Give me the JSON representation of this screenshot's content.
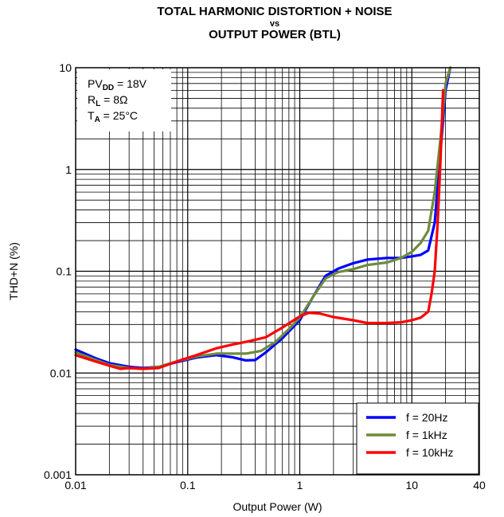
{
  "chart_data": {
    "type": "line",
    "title": [
      "TOTAL HARMONIC DISTORTION + NOISE",
      "vs",
      "OUTPUT POWER (BTL)"
    ],
    "xlabel": "Output Power (W)",
    "ylabel": "THD+N (%)",
    "xscale": "log",
    "yscale": "log",
    "xlim": [
      0.01,
      40
    ],
    "ylim": [
      0.001,
      10
    ],
    "x_tick_labels": [
      "0.01",
      "0.1",
      "1",
      "10",
      "40"
    ],
    "y_tick_labels": [
      "0.001",
      "0.01",
      "0.1",
      "1",
      "10"
    ],
    "grid": true,
    "legend_position": "bottom-right",
    "conditions": [
      {
        "main": "PV",
        "sub": "DD",
        "rest": " = 18V"
      },
      {
        "main": "R",
        "sub": "L",
        "rest": " = 8Ω"
      },
      {
        "main": "T",
        "sub": "A",
        "rest": " = 25°C"
      }
    ],
    "series": [
      {
        "name": "f = 20Hz",
        "color": "#0000ff",
        "x": [
          0.01,
          0.015,
          0.02,
          0.03,
          0.04,
          0.055,
          0.08,
          0.12,
          0.18,
          0.25,
          0.33,
          0.4,
          0.5,
          0.7,
          1.0,
          1.3,
          1.7,
          2.2,
          3.0,
          4.0,
          6.0,
          8.0,
          10.0,
          12.0,
          14.0,
          16.0,
          18.0,
          20.0,
          22.0
        ],
        "y": [
          0.017,
          0.014,
          0.0125,
          0.0115,
          0.0112,
          0.0115,
          0.0128,
          0.0142,
          0.015,
          0.0143,
          0.0133,
          0.0134,
          0.016,
          0.022,
          0.033,
          0.055,
          0.09,
          0.106,
          0.12,
          0.13,
          0.135,
          0.135,
          0.14,
          0.145,
          0.16,
          0.3,
          1.5,
          6.0,
          10.0
        ]
      },
      {
        "name": "f = 1kHz",
        "color": "#6e8b3d",
        "x": [
          0.01,
          0.015,
          0.02,
          0.03,
          0.04,
          0.055,
          0.08,
          0.12,
          0.18,
          0.25,
          0.33,
          0.45,
          0.6,
          0.8,
          1.0,
          1.3,
          1.7,
          2.2,
          3.0,
          4.0,
          6.0,
          8.0,
          10.0,
          12.0,
          14.0,
          16.0,
          18.0,
          20.0,
          22.0
        ],
        "y": [
          0.016,
          0.0135,
          0.012,
          0.0112,
          0.011,
          0.0115,
          0.013,
          0.0145,
          0.0155,
          0.0155,
          0.0155,
          0.0165,
          0.02,
          0.027,
          0.035,
          0.055,
          0.085,
          0.098,
          0.105,
          0.115,
          0.122,
          0.135,
          0.155,
          0.19,
          0.25,
          0.6,
          2.0,
          7.0,
          10.0
        ]
      },
      {
        "name": "f = 10kHz",
        "color": "#ff0000",
        "x": [
          0.01,
          0.015,
          0.02,
          0.025,
          0.03,
          0.04,
          0.055,
          0.08,
          0.12,
          0.18,
          0.25,
          0.35,
          0.5,
          0.7,
          1.0,
          1.2,
          1.5,
          2.0,
          3.0,
          4.0,
          6.0,
          8.0,
          10.0,
          12.0,
          14.0,
          15.0,
          16.0,
          17.0,
          18.0,
          19.0
        ],
        "y": [
          0.015,
          0.013,
          0.0118,
          0.011,
          0.0112,
          0.011,
          0.0112,
          0.013,
          0.015,
          0.0175,
          0.019,
          0.0205,
          0.0225,
          0.028,
          0.036,
          0.039,
          0.0385,
          0.0355,
          0.033,
          0.031,
          0.031,
          0.0315,
          0.033,
          0.035,
          0.04,
          0.06,
          0.1,
          0.3,
          1.2,
          6.0
        ]
      }
    ]
  }
}
